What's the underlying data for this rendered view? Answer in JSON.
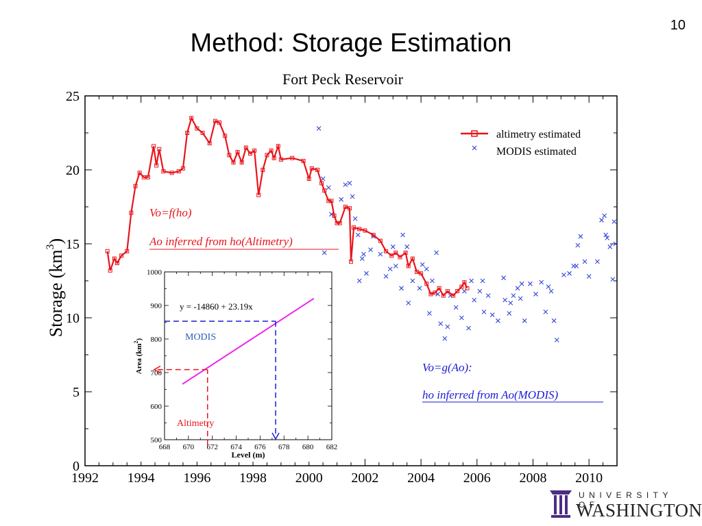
{
  "slide": {
    "number": "10",
    "title": "Method: Storage Estimation"
  },
  "logo": {
    "line1": "UNIVERSITY OF",
    "line2": "WASHINGTON",
    "icon": "university-pillars-icon"
  },
  "colors": {
    "altimetry": "#e8141b",
    "modis": "#3346d6",
    "fit_line": "#ee22ee",
    "axis": "#000000"
  },
  "chart_data": [
    {
      "type": "line",
      "title": "Fort Peck Reservoir",
      "xlabel": "",
      "ylabel": "Storage (km",
      "ylabel_superscript": "3",
      "ylabel_suffix": ")",
      "xlim": [
        1992,
        2011
      ],
      "ylim": [
        0,
        25
      ],
      "xticks": [
        1992,
        1994,
        1996,
        1998,
        2000,
        2002,
        2004,
        2006,
        2008,
        2010
      ],
      "yticks": [
        0,
        5,
        10,
        15,
        20,
        25
      ],
      "legend": "top-right",
      "series": [
        {
          "name": "altimetry estimated",
          "marker": "square",
          "points": [
            [
              1992.8,
              14.5
            ],
            [
              1992.9,
              13.2
            ],
            [
              1993.05,
              14.0
            ],
            [
              1993.15,
              13.7
            ],
            [
              1993.3,
              14.2
            ],
            [
              1993.5,
              14.5
            ],
            [
              1993.65,
              17.1
            ],
            [
              1993.8,
              18.9
            ],
            [
              1993.95,
              19.8
            ],
            [
              1994.1,
              19.5
            ],
            [
              1994.25,
              19.5
            ],
            [
              1994.45,
              21.6
            ],
            [
              1994.55,
              20.3
            ],
            [
              1994.65,
              21.4
            ],
            [
              1994.8,
              19.9
            ],
            [
              1995.1,
              19.8
            ],
            [
              1995.35,
              19.9
            ],
            [
              1995.5,
              20.1
            ],
            [
              1995.65,
              22.5
            ],
            [
              1995.8,
              23.5
            ],
            [
              1996.0,
              22.8
            ],
            [
              1996.2,
              22.5
            ],
            [
              1996.45,
              21.8
            ],
            [
              1996.65,
              23.3
            ],
            [
              1996.8,
              23.2
            ],
            [
              1997.0,
              22.3
            ],
            [
              1997.15,
              21.0
            ],
            [
              1997.3,
              20.5
            ],
            [
              1997.45,
              21.2
            ],
            [
              1997.6,
              20.5
            ],
            [
              1997.75,
              21.5
            ],
            [
              1997.9,
              21.1
            ],
            [
              1998.05,
              21.3
            ],
            [
              1998.2,
              18.3
            ],
            [
              1998.35,
              20.0
            ],
            [
              1998.5,
              21.0
            ],
            [
              1998.65,
              21.3
            ],
            [
              1998.75,
              20.8
            ],
            [
              1998.9,
              21.6
            ],
            [
              1999.0,
              20.7
            ],
            [
              1999.4,
              20.8
            ],
            [
              1999.8,
              20.6
            ],
            [
              2000.0,
              19.4
            ],
            [
              2000.1,
              20.1
            ],
            [
              2000.3,
              20.0
            ],
            [
              2000.45,
              19.1
            ],
            [
              2000.55,
              18.6
            ],
            [
              2000.7,
              17.9
            ],
            [
              2000.8,
              17.9
            ],
            [
              2000.9,
              16.9
            ],
            [
              2001.0,
              16.4
            ],
            [
              2001.1,
              16.4
            ],
            [
              2001.3,
              17.5
            ],
            [
              2001.45,
              17.4
            ],
            [
              2001.5,
              13.8
            ],
            [
              2001.6,
              16.1
            ],
            [
              2001.8,
              16.0
            ],
            [
              2002.0,
              15.9
            ],
            [
              2002.3,
              15.6
            ],
            [
              2002.55,
              15.2
            ],
            [
              2002.75,
              14.5
            ],
            [
              2002.95,
              14.2
            ],
            [
              2003.1,
              14.4
            ],
            [
              2003.25,
              14.1
            ],
            [
              2003.45,
              14.4
            ],
            [
              2003.55,
              13.5
            ],
            [
              2003.7,
              14.0
            ],
            [
              2003.85,
              13.1
            ],
            [
              2004.0,
              13.0
            ],
            [
              2004.2,
              12.3
            ],
            [
              2004.35,
              11.6
            ],
            [
              2004.5,
              11.7
            ],
            [
              2004.65,
              12.0
            ],
            [
              2004.8,
              11.5
            ],
            [
              2004.95,
              11.8
            ],
            [
              2005.15,
              11.5
            ],
            [
              2005.3,
              11.8
            ],
            [
              2005.45,
              12.1
            ],
            [
              2005.55,
              12.4
            ],
            [
              2005.65,
              12.0
            ]
          ]
        },
        {
          "name": "MODIS estimated",
          "marker": "x",
          "points": [
            [
              2000.35,
              22.8
            ],
            [
              2000.5,
              19.4
            ],
            [
              2000.7,
              18.8
            ],
            [
              2000.55,
              14.4
            ],
            [
              2000.8,
              17.0
            ],
            [
              2001.15,
              18.0
            ],
            [
              2001.3,
              19.0
            ],
            [
              2001.45,
              19.1
            ],
            [
              2001.55,
              18.2
            ],
            [
              2001.65,
              16.7
            ],
            [
              2001.75,
              15.6
            ],
            [
              2001.8,
              12.5
            ],
            [
              2001.9,
              14.0
            ],
            [
              2002.05,
              13.0
            ],
            [
              2002.3,
              15.5
            ],
            [
              2002.55,
              14.3
            ],
            [
              2002.75,
              12.8
            ],
            [
              2003.1,
              13.5
            ],
            [
              2003.3,
              12.0
            ],
            [
              2003.5,
              14.8
            ],
            [
              2003.55,
              11.0
            ],
            [
              2003.7,
              12.5
            ],
            [
              2003.95,
              12.0
            ],
            [
              2004.05,
              13.6
            ],
            [
              2004.2,
              13.3
            ],
            [
              2004.4,
              12.5
            ],
            [
              2004.6,
              11.6
            ],
            [
              2004.7,
              9.6
            ],
            [
              2004.85,
              8.6
            ],
            [
              2004.95,
              9.4
            ],
            [
              2005.05,
              11.5
            ],
            [
              2005.25,
              10.7
            ],
            [
              2005.45,
              10.0
            ],
            [
              2005.55,
              11.8
            ],
            [
              2005.7,
              9.3
            ],
            [
              2005.8,
              12.5
            ],
            [
              2006.1,
              11.8
            ],
            [
              2006.25,
              10.4
            ],
            [
              2006.4,
              11.5
            ],
            [
              2006.55,
              10.2
            ],
            [
              2006.75,
              9.8
            ],
            [
              2007.0,
              11.2
            ],
            [
              2007.15,
              10.3
            ],
            [
              2007.3,
              11.5
            ],
            [
              2007.45,
              12.0
            ],
            [
              2007.55,
              11.3
            ],
            [
              2007.7,
              9.8
            ],
            [
              2007.9,
              12.3
            ],
            [
              2008.1,
              11.6
            ],
            [
              2008.3,
              12.4
            ],
            [
              2008.45,
              10.4
            ],
            [
              2008.65,
              11.8
            ],
            [
              2008.75,
              9.8
            ],
            [
              2008.85,
              8.5
            ],
            [
              2009.1,
              12.9
            ],
            [
              2009.3,
              13.0
            ],
            [
              2009.45,
              13.5
            ],
            [
              2009.6,
              14.9
            ],
            [
              2009.7,
              15.5
            ],
            [
              2009.85,
              13.8
            ],
            [
              2010.0,
              12.8
            ],
            [
              2010.3,
              13.8
            ],
            [
              2010.45,
              16.6
            ],
            [
              2010.55,
              16.9
            ],
            [
              2010.65,
              15.4
            ],
            [
              2010.75,
              14.8
            ],
            [
              2010.85,
              12.6
            ],
            [
              2010.9,
              16.5
            ],
            [
              2010.95,
              15.0
            ],
            [
              2006.2,
              12.5
            ],
            [
              2007.6,
              12.3
            ],
            [
              2003.35,
              15.6
            ],
            [
              2002.2,
              14.6
            ],
            [
              2004.55,
              14.4
            ],
            [
              2003.0,
              14.8
            ],
            [
              2001.95,
              14.3
            ],
            [
              2009.55,
              13.5
            ],
            [
              2005.9,
              11.2
            ],
            [
              2008.55,
              12.1
            ],
            [
              2007.2,
              11.0
            ],
            [
              2010.6,
              15.6
            ],
            [
              2006.95,
              12.7
            ],
            [
              2002.9,
              13.3
            ],
            [
              2004.3,
              10.3
            ]
          ]
        }
      ],
      "annotations": {
        "vo_fho": "Vo=f(ho)",
        "ao_inferred": "Ao inferred from ho(Altimetry)",
        "vo_gao": "Vo=g(Ao):",
        "ho_inferred": "ho inferred from Ao(MODIS)"
      }
    },
    {
      "type": "line",
      "title": "",
      "xlabel": "Level (m)",
      "ylabel": "Area (km",
      "ylabel_superscript": "2",
      "ylabel_suffix": ")",
      "xlim": [
        668,
        682
      ],
      "ylim": [
        500,
        1000
      ],
      "xticks": [
        668,
        670,
        672,
        674,
        676,
        678,
        680,
        682
      ],
      "yticks": [
        500,
        600,
        700,
        800,
        900,
        1000
      ],
      "equation": "y = -14860 + 23.19x",
      "fit": {
        "intercept": -14860,
        "slope": 23.19,
        "x_range": [
          669.5,
          680.5
        ]
      },
      "modis_example": {
        "label": "MODIS",
        "area": 853,
        "level": 677.3
      },
      "altimetry_example": {
        "label": "Altimetry",
        "area": 709,
        "level": 671.6
      }
    }
  ]
}
